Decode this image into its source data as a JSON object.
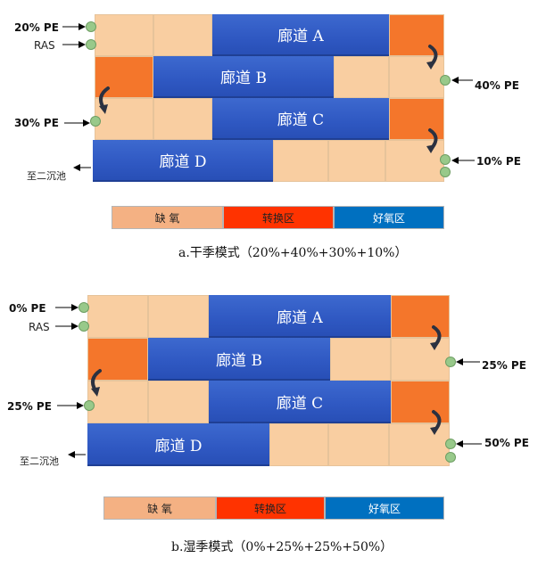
{
  "panel_a": {
    "corridors": {
      "a": "廊道 A",
      "b": "廊道 B",
      "c": "廊道 C",
      "d": "廊道 D"
    },
    "feeds": {
      "top": "20% PE",
      "ras": "RAS",
      "right_b": "40% PE",
      "left_c": "30% PE",
      "right_d": "10% PE"
    },
    "outlet": "至二沉池",
    "legend": {
      "anoxic": "缺 氧",
      "transition": "转换区",
      "aerobic": "好氧区"
    },
    "caption": "a.干季模式（20%+40%+30%+10%）"
  },
  "panel_b": {
    "corridors": {
      "a": "廊道 A",
      "b": "廊道 B",
      "c": "廊道 C",
      "d": "廊道 D"
    },
    "feeds": {
      "top": "0% PE",
      "ras": "RAS",
      "right_b": "25% PE",
      "left_c": "25% PE",
      "right_d": "50% PE"
    },
    "outlet": "至二沉池",
    "legend": {
      "anoxic": "缺 氧",
      "transition": "转换区",
      "aerobic": "好氧区"
    },
    "caption": "b.湿季模式（0%+25%+25%+50%）"
  },
  "colors": {
    "anoxic": "#f9cea1",
    "transition": "#f4762b",
    "aerobic": "#2f58c2",
    "legend_anoxic": "#f4b183",
    "legend_transition": "#ff3300",
    "legend_aerobic": "#0070c0",
    "feed_point": "#98c98a"
  }
}
